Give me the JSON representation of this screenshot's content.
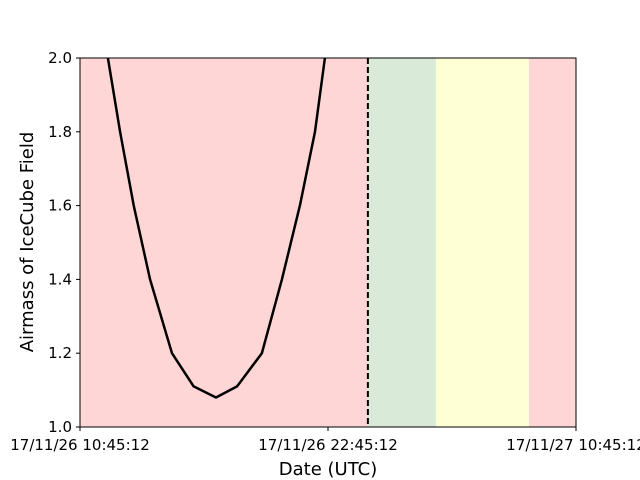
{
  "chart_data": {
    "type": "line",
    "xlabel": "Date (UTC)",
    "ylabel": "Airmass of IceCube Field",
    "xlim": [
      0,
      24
    ],
    "ylim": [
      1.0,
      2.0
    ],
    "xticks": [
      {
        "value": 0,
        "label": "17/11/26 10:45:12"
      },
      {
        "value": 12,
        "label": "17/11/26 22:45:12"
      },
      {
        "value": 24,
        "label": "17/11/27 10:45:12"
      }
    ],
    "yticks": [
      {
        "value": 1.0,
        "label": "1.0"
      },
      {
        "value": 1.2,
        "label": "1.2"
      },
      {
        "value": 1.4,
        "label": "1.4"
      },
      {
        "value": 1.6,
        "label": "1.6"
      },
      {
        "value": 1.8,
        "label": "1.8"
      },
      {
        "value": 2.0,
        "label": "2.0"
      }
    ],
    "regions": [
      {
        "start": 0,
        "end": 13.93,
        "color": "#ffd6d6"
      },
      {
        "start": 13.93,
        "end": 17.22,
        "color": "#d9ead9"
      },
      {
        "start": 17.22,
        "end": 21.72,
        "color": "#ffffd6"
      },
      {
        "start": 21.72,
        "end": 24,
        "color": "#ffd6d6"
      }
    ],
    "vline": 13.93,
    "series": [
      {
        "color": "#000000",
        "x": [
          1.35,
          1.94,
          2.6,
          3.39,
          4.45,
          5.5,
          6.58,
          7.6,
          8.8,
          9.77,
          10.64,
          11.37,
          11.85
        ],
        "values": [
          2.0,
          1.8,
          1.6,
          1.4,
          1.2,
          1.11,
          1.08,
          1.11,
          1.2,
          1.4,
          1.6,
          1.8,
          2.0
        ]
      }
    ]
  }
}
